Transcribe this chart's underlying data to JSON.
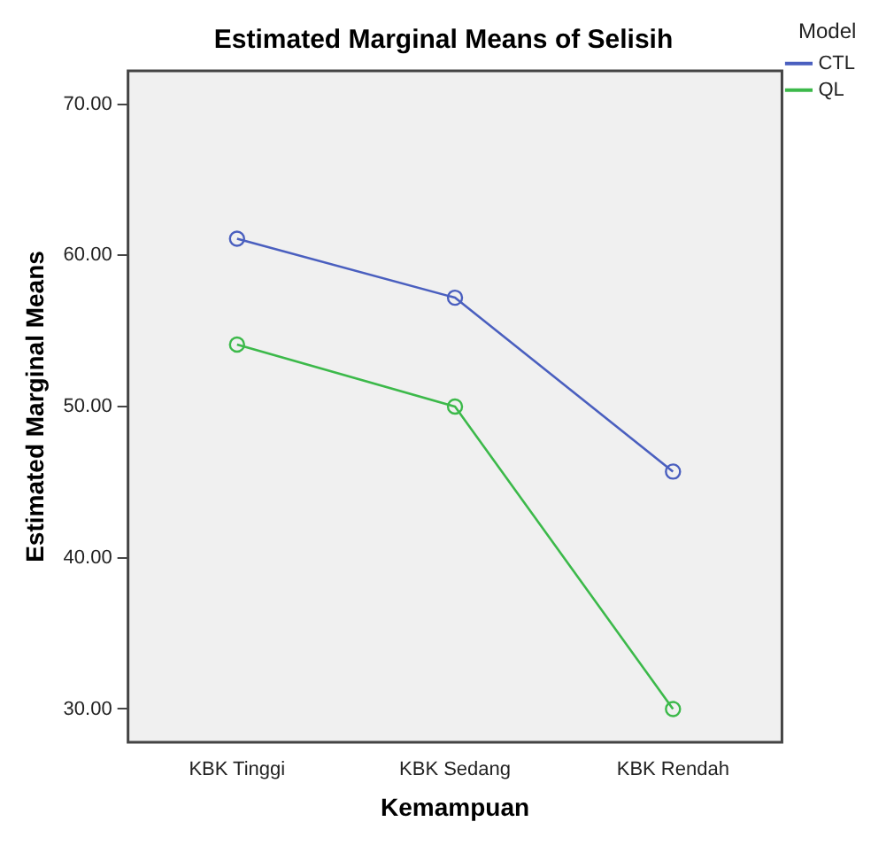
{
  "chart_data": {
    "type": "line",
    "title": "Estimated Marginal Means of Selisih",
    "xlabel": "Kemampuan",
    "ylabel": "Estimated Marginal Means",
    "legend_title": "Model",
    "categories": [
      "KBK Tinggi",
      "KBK Sedang",
      "KBK Rendah"
    ],
    "series": [
      {
        "name": "CTL",
        "color": "#4a5fbf",
        "values": [
          61.1,
          57.2,
          45.7
        ]
      },
      {
        "name": "QL",
        "color": "#3cb94a",
        "values": [
          54.1,
          50.0,
          30.0
        ]
      }
    ],
    "ylim": [
      27.8,
      72.2
    ],
    "yticks": [
      {
        "value": 30,
        "label": "30.00"
      },
      {
        "value": 40,
        "label": "40.00"
      },
      {
        "value": 50,
        "label": "50.00"
      },
      {
        "value": 60,
        "label": "60.00"
      },
      {
        "value": 70,
        "label": "70.00"
      }
    ],
    "grid": false,
    "legend": "top right",
    "marker": "circle",
    "line_style": "solid"
  }
}
